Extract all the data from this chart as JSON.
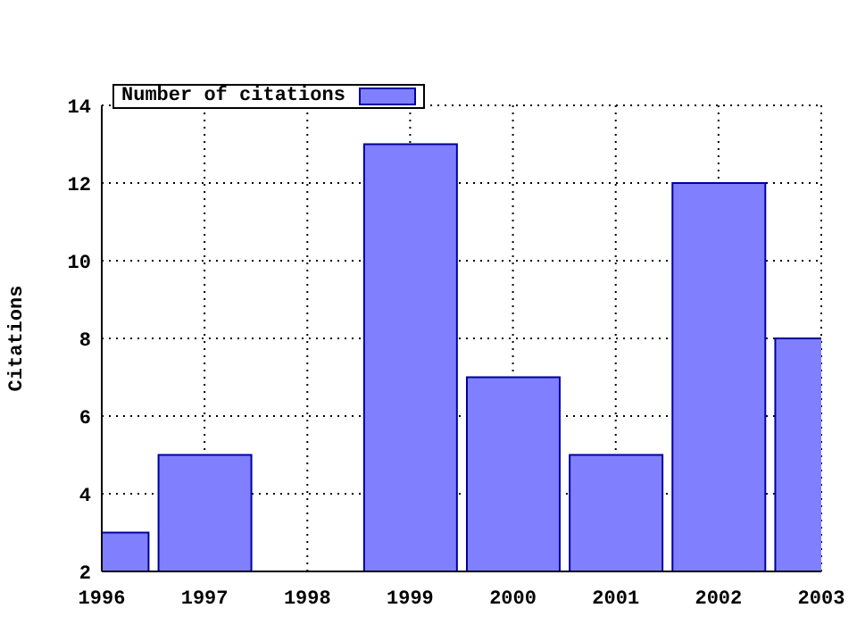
{
  "chart_data": {
    "type": "bar",
    "ylabel": "Citations",
    "x": [
      1996,
      1997,
      1998,
      1999,
      2000,
      2001,
      2002,
      2003
    ],
    "series": [
      {
        "name": "Number of citations",
        "color": "#8080ff",
        "values": [
          3,
          5,
          null,
          13,
          7,
          5,
          12,
          8
        ]
      }
    ],
    "xlim": [
      1996,
      2003
    ],
    "xticks": [
      1996,
      1997,
      1998,
      1999,
      2000,
      2001,
      2002,
      2003
    ],
    "ylim": [
      2,
      14
    ],
    "yticks": [
      2,
      4,
      6,
      8,
      10,
      12,
      14
    ],
    "grid": true,
    "legend": "top left"
  }
}
